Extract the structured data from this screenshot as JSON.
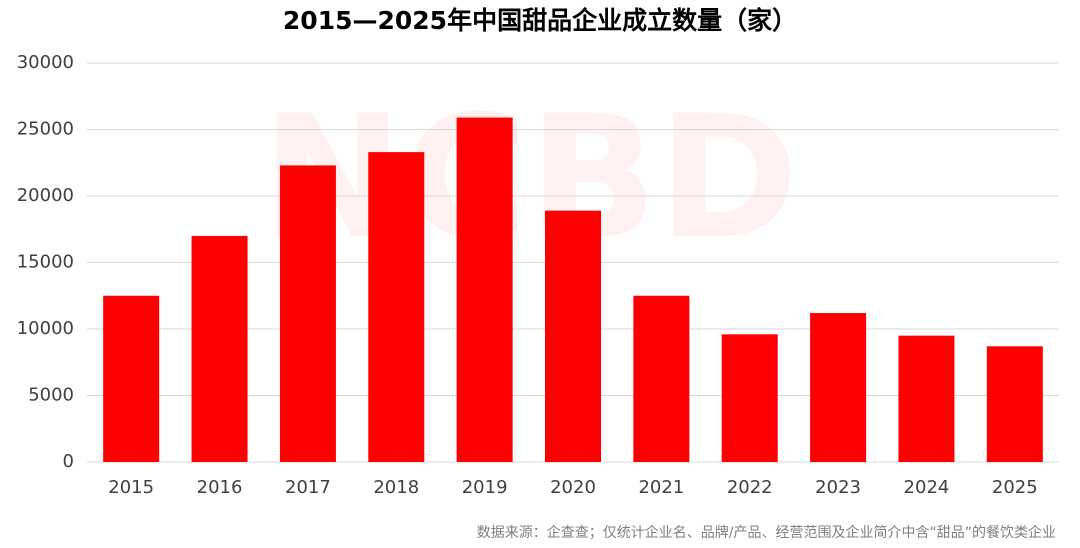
{
  "chart_data": {
    "type": "bar",
    "title": "2015—2025年中国甜品企业成立数量（家）",
    "categories": [
      "2015",
      "2016",
      "2017",
      "2018",
      "2019",
      "2020",
      "2021",
      "2022",
      "2023",
      "2024",
      "2025"
    ],
    "values": [
      12500,
      17000,
      22300,
      23300,
      25900,
      18900,
      12500,
      9600,
      11200,
      9500,
      8700
    ],
    "color": "#ff0000",
    "ylim": [
      0,
      30000
    ],
    "yticks": [
      0,
      5000,
      10000,
      15000,
      20000,
      25000,
      30000
    ],
    "grid": true,
    "watermark": "NCBD",
    "source": "数据来源：企查查；仅统计企业名、品牌/产品、经营范围及企业简介中含“甜品”的餐饮类企业"
  }
}
